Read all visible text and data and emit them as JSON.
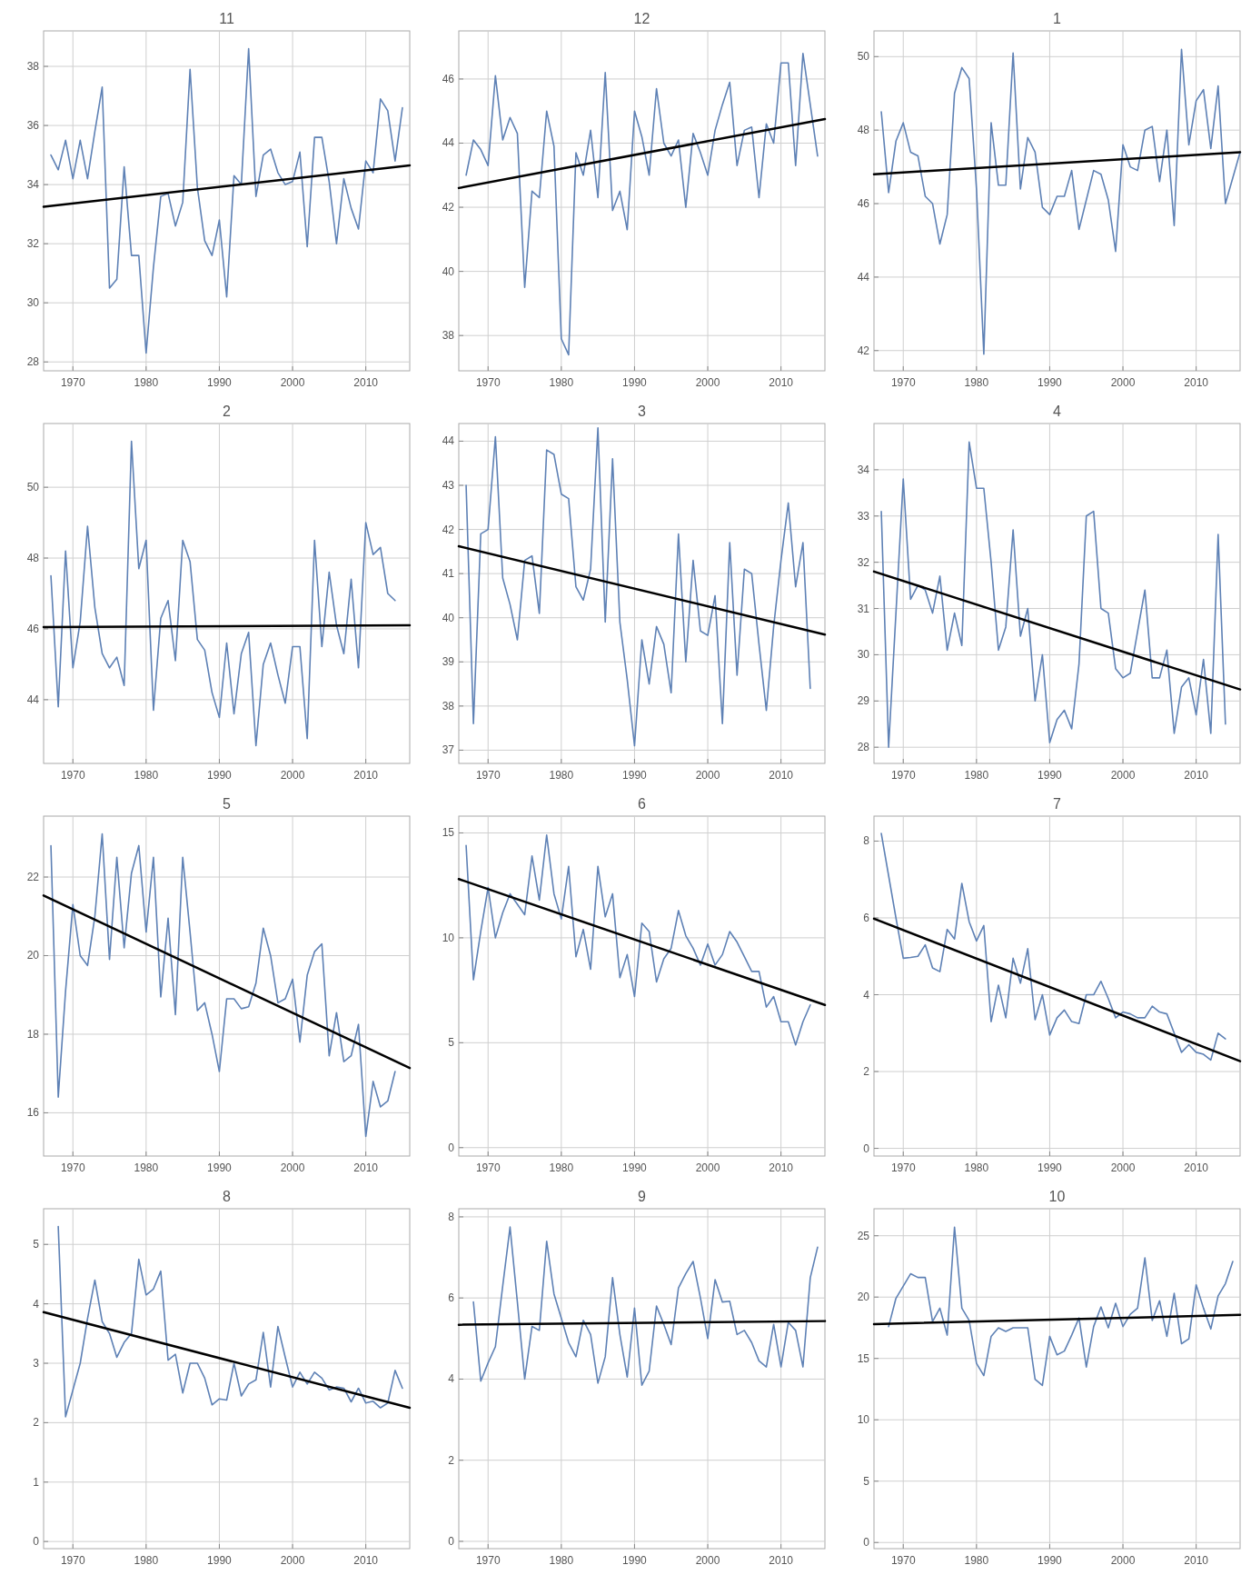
{
  "chart_data": [
    {
      "type": "line",
      "title": "11",
      "xlim": [
        1966,
        2016
      ],
      "xticks": [
        1970,
        1980,
        1990,
        2000,
        2010
      ],
      "ylim": [
        27.7,
        39.2
      ],
      "yticks": [
        28,
        30,
        32,
        34,
        36,
        38
      ],
      "grid": true,
      "series": [
        {
          "color": "#5e81b5",
          "x": [
            1967,
            1968,
            1969,
            1970,
            1971,
            1972,
            1973,
            1974,
            1975,
            1976,
            1977,
            1978,
            1979,
            1980,
            1981,
            1982,
            1983,
            1984,
            1985,
            1986,
            1987,
            1988,
            1989,
            1990,
            1991,
            1992,
            1993,
            1994,
            1995,
            1996,
            1997,
            1998,
            1999,
            2000,
            2001,
            2002,
            2003,
            2004,
            2005,
            2006,
            2007,
            2008,
            2009,
            2010,
            2011,
            2012,
            2013,
            2014,
            2015
          ],
          "values": [
            35.0,
            34.5,
            35.5,
            34.2,
            35.5,
            34.2,
            35.8,
            37.3,
            30.5,
            30.8,
            34.6,
            31.6,
            31.6,
            28.3,
            31.2,
            33.6,
            33.7,
            32.6,
            33.4,
            37.9,
            33.9,
            32.1,
            31.6,
            32.8,
            30.2,
            34.3,
            34.0,
            38.6,
            33.6,
            35.0,
            35.2,
            34.4,
            34.0,
            34.1,
            35.1,
            31.9,
            35.6,
            35.6,
            34.1,
            32.0,
            34.2,
            33.2,
            32.5,
            34.8,
            34.4,
            36.9,
            36.5,
            34.8,
            36.6
          ]
        },
        {
          "color": "#000000",
          "x": [
            1966,
            2016
          ],
          "values": [
            33.25,
            34.65
          ]
        }
      ]
    },
    {
      "type": "line",
      "title": "12",
      "xlim": [
        1966,
        2016
      ],
      "xticks": [
        1970,
        1980,
        1990,
        2000,
        2010
      ],
      "ylim": [
        36.9,
        47.5
      ],
      "yticks": [
        38,
        40,
        42,
        44,
        46
      ],
      "grid": true,
      "series": [
        {
          "color": "#5e81b5",
          "x": [
            1967,
            1968,
            1969,
            1970,
            1971,
            1972,
            1973,
            1974,
            1975,
            1976,
            1977,
            1978,
            1979,
            1980,
            1981,
            1982,
            1983,
            1984,
            1985,
            1986,
            1987,
            1988,
            1989,
            1990,
            1991,
            1992,
            1993,
            1994,
            1995,
            1996,
            1997,
            1998,
            1999,
            2000,
            2001,
            2002,
            2003,
            2004,
            2005,
            2006,
            2007,
            2008,
            2009,
            2010,
            2011,
            2012,
            2013,
            2014,
            2015
          ],
          "values": [
            43.0,
            44.1,
            43.8,
            43.3,
            46.1,
            44.1,
            44.8,
            44.3,
            39.5,
            42.5,
            42.3,
            45.0,
            43.9,
            37.9,
            37.4,
            43.7,
            43.0,
            44.4,
            42.3,
            46.2,
            41.9,
            42.5,
            41.3,
            45.0,
            44.2,
            43.0,
            45.7,
            44.0,
            43.6,
            44.1,
            42.0,
            44.3,
            43.7,
            43.0,
            44.4,
            45.2,
            45.9,
            43.3,
            44.4,
            44.5,
            42.3,
            44.6,
            44.0,
            46.5,
            46.5,
            43.3,
            46.8,
            45.2,
            43.6
          ]
        },
        {
          "color": "#000000",
          "x": [
            1966,
            2016
          ],
          "values": [
            42.6,
            44.75
          ]
        }
      ]
    },
    {
      "type": "line",
      "title": "1",
      "xlim": [
        1966,
        2016
      ],
      "xticks": [
        1970,
        1980,
        1990,
        2000,
        2010
      ],
      "ylim": [
        41.45,
        50.7
      ],
      "yticks": [
        42,
        44,
        46,
        48,
        50
      ],
      "grid": true,
      "series": [
        {
          "color": "#5e81b5",
          "x": [
            1967,
            1968,
            1969,
            1970,
            1971,
            1972,
            1973,
            1974,
            1975,
            1976,
            1977,
            1978,
            1979,
            1980,
            1981,
            1982,
            1983,
            1984,
            1985,
            1986,
            1987,
            1988,
            1989,
            1990,
            1991,
            1992,
            1993,
            1994,
            1995,
            1996,
            1997,
            1998,
            1999,
            2000,
            2001,
            2002,
            2003,
            2004,
            2005,
            2006,
            2007,
            2008,
            2009,
            2010,
            2011,
            2012,
            2013,
            2014,
            2015,
            2016
          ],
          "values": [
            48.5,
            46.3,
            47.7,
            48.2,
            47.4,
            47.3,
            46.2,
            46.0,
            44.9,
            45.7,
            49.0,
            49.7,
            49.4,
            46.4,
            41.9,
            48.2,
            46.5,
            46.5,
            50.1,
            46.4,
            47.8,
            47.4,
            45.9,
            45.7,
            46.2,
            46.2,
            46.9,
            45.3,
            46.1,
            46.9,
            46.8,
            46.1,
            44.7,
            47.6,
            47.0,
            46.9,
            48.0,
            48.1,
            46.6,
            48.0,
            45.4,
            50.2,
            47.6,
            48.8,
            49.1,
            47.5,
            49.2,
            46.0,
            46.7,
            47.4
          ]
        },
        {
          "color": "#000000",
          "x": [
            1966,
            2016
          ],
          "values": [
            46.8,
            47.4
          ]
        }
      ]
    },
    {
      "type": "line",
      "title": "2",
      "xlim": [
        1966,
        2016
      ],
      "xticks": [
        1970,
        1980,
        1990,
        2000,
        2010
      ],
      "ylim": [
        42.2,
        51.8
      ],
      "yticks": [
        44,
        46,
        48,
        50
      ],
      "grid": true,
      "series": [
        {
          "color": "#5e81b5",
          "x": [
            1967,
            1968,
            1969,
            1970,
            1971,
            1972,
            1973,
            1974,
            1975,
            1976,
            1977,
            1978,
            1979,
            1980,
            1981,
            1982,
            1983,
            1984,
            1985,
            1986,
            1987,
            1988,
            1989,
            1990,
            1991,
            1992,
            1993,
            1994,
            1995,
            1996,
            1997,
            1998,
            1999,
            2000,
            2001,
            2002,
            2003,
            2004,
            2005,
            2006,
            2007,
            2008,
            2009,
            2010,
            2011,
            2012,
            2013,
            2014
          ],
          "values": [
            47.5,
            43.8,
            48.2,
            44.9,
            46.2,
            48.9,
            46.6,
            45.3,
            44.9,
            45.2,
            44.4,
            51.3,
            47.7,
            48.5,
            43.7,
            46.3,
            46.8,
            45.1,
            48.5,
            47.9,
            45.7,
            45.4,
            44.2,
            43.5,
            45.6,
            43.6,
            45.3,
            45.9,
            42.7,
            45.0,
            45.6,
            44.7,
            43.9,
            45.5,
            45.5,
            42.9,
            48.5,
            45.5,
            47.6,
            46.1,
            45.3,
            47.4,
            44.9,
            49.0,
            48.1,
            48.3,
            47.0,
            46.8
          ]
        },
        {
          "color": "#000000",
          "x": [
            1966,
            2016
          ],
          "values": [
            46.05,
            46.1
          ]
        }
      ]
    },
    {
      "type": "line",
      "title": "3",
      "xlim": [
        1966,
        2016
      ],
      "xticks": [
        1970,
        1980,
        1990,
        2000,
        2010
      ],
      "ylim": [
        36.7,
        44.4
      ],
      "yticks": [
        37,
        38,
        39,
        40,
        41,
        42,
        43,
        44
      ],
      "grid": true,
      "series": [
        {
          "color": "#5e81b5",
          "x": [
            1967,
            1968,
            1969,
            1970,
            1971,
            1972,
            1973,
            1974,
            1975,
            1976,
            1977,
            1978,
            1979,
            1980,
            1981,
            1982,
            1983,
            1984,
            1985,
            1986,
            1987,
            1988,
            1989,
            1990,
            1991,
            1992,
            1993,
            1994,
            1995,
            1996,
            1997,
            1998,
            1999,
            2000,
            2001,
            2002,
            2003,
            2004,
            2005,
            2006,
            2007,
            2008,
            2009,
            2010,
            2011,
            2012,
            2013,
            2014
          ],
          "values": [
            43.0,
            37.6,
            41.9,
            42.0,
            44.1,
            40.9,
            40.3,
            39.5,
            41.3,
            41.4,
            40.1,
            43.8,
            43.7,
            42.8,
            42.7,
            40.7,
            40.4,
            41.1,
            44.3,
            39.9,
            43.6,
            39.9,
            38.6,
            37.1,
            39.5,
            38.5,
            39.8,
            39.4,
            38.3,
            41.9,
            39.0,
            41.3,
            39.7,
            39.6,
            40.5,
            37.6,
            41.7,
            38.7,
            41.1,
            41.0,
            39.4,
            37.9,
            39.8,
            41.3,
            42.6,
            40.7,
            41.7,
            38.4
          ]
        },
        {
          "color": "#000000",
          "x": [
            1966,
            2016
          ],
          "values": [
            41.62,
            39.62
          ]
        }
      ]
    },
    {
      "type": "line",
      "title": "4",
      "xlim": [
        1966,
        2016
      ],
      "xticks": [
        1970,
        1980,
        1990,
        2000,
        2010
      ],
      "ylim": [
        27.65,
        35.0
      ],
      "yticks": [
        28,
        29,
        30,
        31,
        32,
        33,
        34
      ],
      "grid": true,
      "series": [
        {
          "color": "#5e81b5",
          "x": [
            1967,
            1968,
            1969,
            1970,
            1971,
            1972,
            1973,
            1974,
            1975,
            1976,
            1977,
            1978,
            1979,
            1980,
            1981,
            1982,
            1983,
            1984,
            1985,
            1986,
            1987,
            1988,
            1989,
            1990,
            1991,
            1992,
            1993,
            1994,
            1995,
            1996,
            1997,
            1998,
            1999,
            2000,
            2001,
            2002,
            2003,
            2004,
            2005,
            2006,
            2007,
            2008,
            2009,
            2010,
            2011,
            2012,
            2013,
            2014
          ],
          "values": [
            33.1,
            28.0,
            30.9,
            33.8,
            31.2,
            31.5,
            31.4,
            30.9,
            31.7,
            30.1,
            30.9,
            30.2,
            34.6,
            33.6,
            33.6,
            32.0,
            30.1,
            30.6,
            32.7,
            30.4,
            31.0,
            29.0,
            30.0,
            28.1,
            28.6,
            28.8,
            28.4,
            29.8,
            33.0,
            33.1,
            31.0,
            30.9,
            29.7,
            29.5,
            29.6,
            30.5,
            31.4,
            29.5,
            29.5,
            30.1,
            28.3,
            29.3,
            29.5,
            28.7,
            29.9,
            28.3,
            32.6,
            28.5
          ]
        },
        {
          "color": "#000000",
          "x": [
            1966,
            2016
          ],
          "values": [
            31.8,
            29.25
          ]
        }
      ]
    },
    {
      "type": "line",
      "title": "5",
      "xlim": [
        1966,
        2016
      ],
      "xticks": [
        1970,
        1980,
        1990,
        2000,
        2010
      ],
      "ylim": [
        14.9,
        23.55
      ],
      "yticks": [
        16,
        18,
        20,
        22
      ],
      "grid": true,
      "series": [
        {
          "color": "#5e81b5",
          "x": [
            1967,
            1968,
            1969,
            1970,
            1971,
            1972,
            1973,
            1974,
            1975,
            1976,
            1977,
            1978,
            1979,
            1980,
            1981,
            1982,
            1983,
            1984,
            1985,
            1986,
            1987,
            1988,
            1989,
            1990,
            1991,
            1992,
            1993,
            1994,
            1995,
            1996,
            1997,
            1998,
            1999,
            2000,
            2001,
            2002,
            2003,
            2004,
            2005,
            2006,
            2007,
            2008,
            2009,
            2010,
            2011,
            2012,
            2013,
            2014
          ],
          "values": [
            22.8,
            16.4,
            19.1,
            21.3,
            20.0,
            19.75,
            21.0,
            23.1,
            19.9,
            22.5,
            20.2,
            22.1,
            22.8,
            20.6,
            22.5,
            18.95,
            20.95,
            18.5,
            22.5,
            20.6,
            18.6,
            18.8,
            18.0,
            17.05,
            18.9,
            18.9,
            18.65,
            18.7,
            19.3,
            20.7,
            20.0,
            18.8,
            18.9,
            19.4,
            17.8,
            19.5,
            20.1,
            20.3,
            17.45,
            18.55,
            17.3,
            17.45,
            18.25,
            15.4,
            16.8,
            16.15,
            16.3,
            17.05
          ]
        },
        {
          "color": "#000000",
          "x": [
            1966,
            2016
          ],
          "values": [
            21.53,
            17.14
          ]
        }
      ]
    },
    {
      "type": "line",
      "title": "6",
      "xlim": [
        1966,
        2016
      ],
      "xticks": [
        1970,
        1980,
        1990,
        2000,
        2010
      ],
      "ylim": [
        -0.4,
        15.8
      ],
      "yticks": [
        0,
        5,
        10,
        15
      ],
      "grid": true,
      "series": [
        {
          "color": "#5e81b5",
          "x": [
            1967,
            1968,
            1969,
            1970,
            1971,
            1972,
            1973,
            1974,
            1975,
            1976,
            1977,
            1978,
            1979,
            1980,
            1981,
            1982,
            1983,
            1984,
            1985,
            1986,
            1987,
            1988,
            1989,
            1990,
            1991,
            1992,
            1993,
            1994,
            1995,
            1996,
            1997,
            1998,
            1999,
            2000,
            2001,
            2002,
            2003,
            2004,
            2005,
            2006,
            2007,
            2008,
            2009,
            2010,
            2011,
            2012,
            2013,
            2014
          ],
          "values": [
            14.4,
            8.0,
            10.3,
            12.4,
            10.0,
            11.2,
            12.1,
            11.6,
            11.1,
            13.9,
            11.8,
            14.9,
            12.1,
            10.9,
            13.4,
            9.1,
            10.4,
            8.5,
            13.4,
            11.0,
            12.1,
            8.1,
            9.2,
            7.2,
            10.7,
            10.3,
            7.9,
            9.0,
            9.5,
            11.3,
            10.1,
            9.5,
            8.7,
            9.7,
            8.7,
            9.2,
            10.3,
            9.8,
            9.1,
            8.4,
            8.4,
            6.7,
            7.2,
            6.0,
            6.0,
            4.9,
            6.0,
            6.8
          ]
        },
        {
          "color": "#000000",
          "x": [
            1966,
            2016
          ],
          "values": [
            12.8,
            6.8
          ]
        }
      ]
    },
    {
      "type": "line",
      "title": "7",
      "xlim": [
        1966,
        2016
      ],
      "xticks": [
        1970,
        1980,
        1990,
        2000,
        2010
      ],
      "ylim": [
        -0.2,
        8.65
      ],
      "yticks": [
        0,
        2,
        4,
        6,
        8
      ],
      "grid": true,
      "series": [
        {
          "color": "#5e81b5",
          "x": [
            1967,
            1968,
            1969,
            1970,
            1971,
            1972,
            1973,
            1974,
            1975,
            1976,
            1977,
            1978,
            1979,
            1980,
            1981,
            1982,
            1983,
            1984,
            1985,
            1986,
            1987,
            1988,
            1989,
            1990,
            1991,
            1992,
            1993,
            1994,
            1995,
            1996,
            1997,
            1998,
            1999,
            2000,
            2001,
            2002,
            2003,
            2004,
            2005,
            2006,
            2007,
            2008,
            2009,
            2010,
            2011,
            2012,
            2013,
            2014
          ],
          "values": [
            8.2,
            7.1,
            6.0,
            4.95,
            4.97,
            5.0,
            5.3,
            4.7,
            4.6,
            5.7,
            5.45,
            6.9,
            5.9,
            5.4,
            5.8,
            3.3,
            4.25,
            3.4,
            4.95,
            4.3,
            5.2,
            3.35,
            4.0,
            2.95,
            3.4,
            3.6,
            3.3,
            3.25,
            4.0,
            4.0,
            4.35,
            3.9,
            3.4,
            3.55,
            3.5,
            3.4,
            3.4,
            3.7,
            3.55,
            3.5,
            3.0,
            2.5,
            2.7,
            2.5,
            2.45,
            2.3,
            3.0,
            2.85
          ]
        },
        {
          "color": "#000000",
          "x": [
            1966,
            2016
          ],
          "values": [
            5.98,
            2.27
          ]
        }
      ]
    },
    {
      "type": "line",
      "title": "8",
      "xlim": [
        1966,
        2016
      ],
      "xticks": [
        1970,
        1980,
        1990,
        2000,
        2010
      ],
      "ylim": [
        -0.12,
        5.6
      ],
      "yticks": [
        0,
        1,
        2,
        3,
        4,
        5
      ],
      "grid": true,
      "series": [
        {
          "color": "#5e81b5",
          "x": [
            1968,
            1969,
            1970,
            1971,
            1972,
            1973,
            1974,
            1975,
            1976,
            1977,
            1978,
            1979,
            1980,
            1981,
            1982,
            1983,
            1984,
            1985,
            1986,
            1987,
            1988,
            1989,
            1990,
            1991,
            1992,
            1993,
            1994,
            1995,
            1996,
            1997,
            1998,
            1999,
            2000,
            2001,
            2002,
            2003,
            2004,
            2005,
            2006,
            2007,
            2008,
            2009,
            2010,
            2011,
            2012,
            2013,
            2014,
            2015
          ],
          "values": [
            5.3,
            2.1,
            2.55,
            3.0,
            3.75,
            4.4,
            3.7,
            3.5,
            3.1,
            3.35,
            3.5,
            4.75,
            4.15,
            4.25,
            4.55,
            3.05,
            3.15,
            2.5,
            3.0,
            3.0,
            2.75,
            2.3,
            2.4,
            2.38,
            3.0,
            2.45,
            2.65,
            2.72,
            3.52,
            2.6,
            3.62,
            3.1,
            2.6,
            2.85,
            2.65,
            2.85,
            2.75,
            2.55,
            2.6,
            2.58,
            2.35,
            2.58,
            2.33,
            2.36,
            2.25,
            2.33,
            2.88,
            2.58
          ]
        },
        {
          "color": "#000000",
          "x": [
            1966,
            2016
          ],
          "values": [
            3.86,
            2.25
          ]
        }
      ]
    },
    {
      "type": "line",
      "title": "9",
      "xlim": [
        1966,
        2016
      ],
      "xticks": [
        1970,
        1980,
        1990,
        2000,
        2010
      ],
      "ylim": [
        -0.18,
        8.2
      ],
      "yticks": [
        0,
        2,
        4,
        6,
        8
      ],
      "grid": true,
      "series": [
        {
          "color": "#5e81b5",
          "x": [
            1968,
            1969,
            1970,
            1971,
            1972,
            1973,
            1974,
            1975,
            1976,
            1977,
            1978,
            1979,
            1980,
            1981,
            1982,
            1983,
            1984,
            1985,
            1986,
            1987,
            1988,
            1989,
            1990,
            1991,
            1992,
            1993,
            1994,
            1995,
            1996,
            1997,
            1998,
            1999,
            2000,
            2001,
            2002,
            2003,
            2004,
            2005,
            2006,
            2007,
            2008,
            2009,
            2010,
            2011,
            2012,
            2013,
            2014,
            2015
          ],
          "values": [
            5.9,
            3.95,
            4.4,
            4.8,
            6.3,
            7.75,
            5.9,
            4.0,
            5.3,
            5.2,
            7.4,
            6.1,
            5.5,
            4.9,
            4.55,
            5.45,
            5.1,
            3.9,
            4.55,
            6.5,
            5.1,
            4.05,
            5.75,
            3.85,
            4.2,
            5.8,
            5.35,
            4.85,
            6.25,
            6.6,
            6.9,
            6.0,
            5.0,
            6.45,
            5.9,
            5.92,
            5.1,
            5.2,
            4.9,
            4.45,
            4.3,
            5.35,
            4.3,
            5.4,
            5.2,
            4.3,
            6.5,
            7.25
          ]
        },
        {
          "color": "#000000",
          "x": [
            1966,
            2016
          ],
          "values": [
            5.34,
            5.43
          ]
        }
      ]
    },
    {
      "type": "line",
      "title": "10",
      "xlim": [
        1966,
        2016
      ],
      "xticks": [
        1970,
        1980,
        1990,
        2000,
        2010
      ],
      "ylim": [
        -0.5,
        27.2
      ],
      "yticks": [
        0,
        5,
        10,
        15,
        20,
        25
      ],
      "grid": true,
      "series": [
        {
          "color": "#5e81b5",
          "x": [
            1968,
            1969,
            1970,
            1971,
            1972,
            1973,
            1974,
            1975,
            1976,
            1977,
            1978,
            1979,
            1980,
            1981,
            1982,
            1983,
            1984,
            1985,
            1986,
            1987,
            1988,
            1989,
            1990,
            1991,
            1992,
            1993,
            1994,
            1995,
            1996,
            1997,
            1998,
            1999,
            2000,
            2001,
            2002,
            2003,
            2004,
            2005,
            2006,
            2007,
            2008,
            2009,
            2010,
            2011,
            2012,
            2013,
            2014,
            2015
          ],
          "values": [
            17.6,
            19.9,
            20.9,
            21.9,
            21.6,
            21.6,
            18.0,
            19.1,
            16.9,
            25.7,
            19.1,
            18.1,
            14.6,
            13.6,
            16.8,
            17.5,
            17.2,
            17.5,
            17.5,
            17.5,
            13.3,
            12.8,
            16.8,
            15.3,
            15.6,
            16.9,
            18.3,
            14.3,
            17.6,
            19.2,
            17.5,
            19.5,
            17.6,
            18.6,
            19.1,
            23.2,
            18.1,
            19.7,
            16.8,
            20.3,
            16.2,
            16.6,
            21.0,
            19.1,
            17.4,
            20.1,
            21.1,
            22.9
          ]
        },
        {
          "color": "#000000",
          "x": [
            1966,
            2016
          ],
          "values": [
            17.8,
            18.55
          ]
        }
      ]
    }
  ]
}
